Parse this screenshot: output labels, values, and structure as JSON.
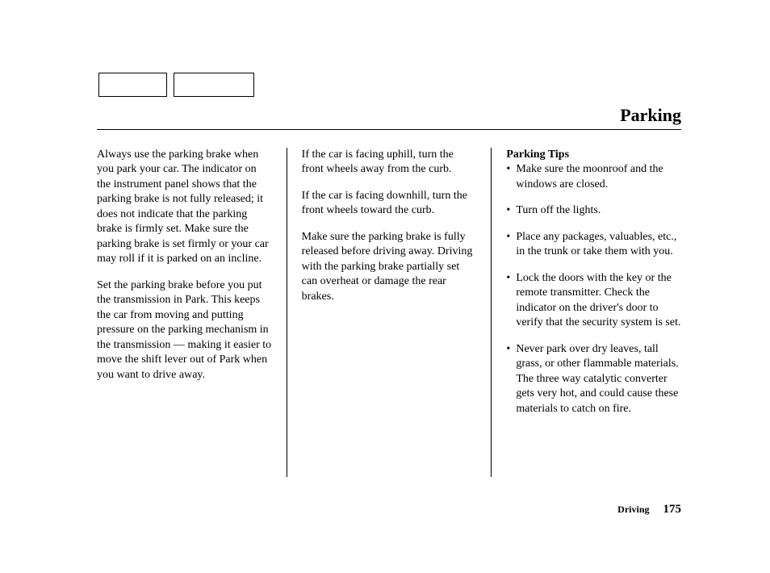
{
  "header": {
    "title": "Parking"
  },
  "column1": {
    "p1": "Always use the parking brake when you park your car. The indicator on the instrument panel shows that the parking brake is not fully released; it does not indicate that the parking brake is firmly set. Make sure the parking brake is set firmly or your car may roll if it is parked on an incline.",
    "p2": "Set the parking brake before you put the transmission in Park. This keeps the car from moving and putting pressure on the parking mechanism in the transmission — making it easier to move the shift lever out of Park when you want to drive away."
  },
  "column2": {
    "p1": "If the car is facing uphill, turn the front wheels away from the curb.",
    "p2": "If the car is facing downhill, turn the front wheels toward the curb.",
    "p3": "Make sure the parking brake is fully released before driving away. Driving with the parking brake partially set can overheat or damage the rear brakes."
  },
  "column3": {
    "subhead": "Parking Tips",
    "tips": [
      "Make sure the moonroof and the windows are closed.",
      "Turn off the lights.",
      "Place any packages, valuables, etc., in the trunk or take them with you.",
      "Lock the doors with the key or the remote transmitter. Check the indicator on the driver's door to verify that the security system is set.",
      "Never park over dry leaves, tall grass, or other flammable materials. The three way catalytic converter gets very hot, and could cause these materials to catch on fire."
    ]
  },
  "footer": {
    "section": "Driving",
    "page": "175"
  }
}
